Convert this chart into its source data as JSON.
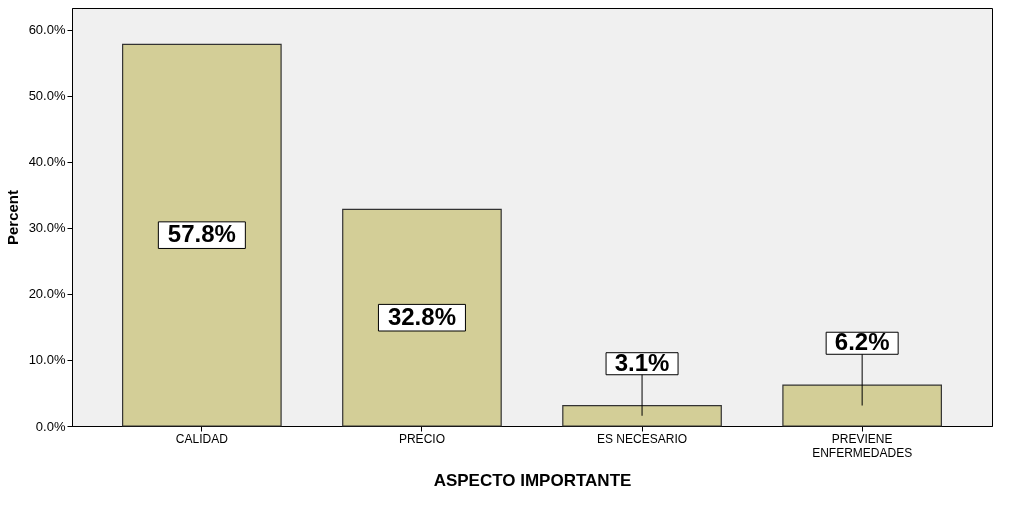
{
  "chart_data": {
    "type": "bar",
    "xlabel": "ASPECTO IMPORTANTE",
    "ylabel": "Percent",
    "categories": [
      "CALIDAD",
      "PRECIO",
      "ES NECESARIO",
      "PREVIENE ENFERMEDADES"
    ],
    "values": [
      57.8,
      32.8,
      3.1,
      6.2
    ],
    "value_labels": [
      "57.8%",
      "32.8%",
      "3.1%",
      "6.2%"
    ],
    "color": "#d3ce97",
    "ylim": [
      0,
      63.3
    ],
    "yticks": [
      {
        "value": 0,
        "label": "0.0%"
      },
      {
        "value": 10,
        "label": "10.0%"
      },
      {
        "value": 20,
        "label": "20.0%"
      },
      {
        "value": 30,
        "label": "30.0%"
      },
      {
        "value": 40,
        "label": "40.0%"
      },
      {
        "value": 50,
        "label": "50.0%"
      },
      {
        "value": 60,
        "label": "60.0%"
      }
    ],
    "grid": false,
    "legend": false
  }
}
